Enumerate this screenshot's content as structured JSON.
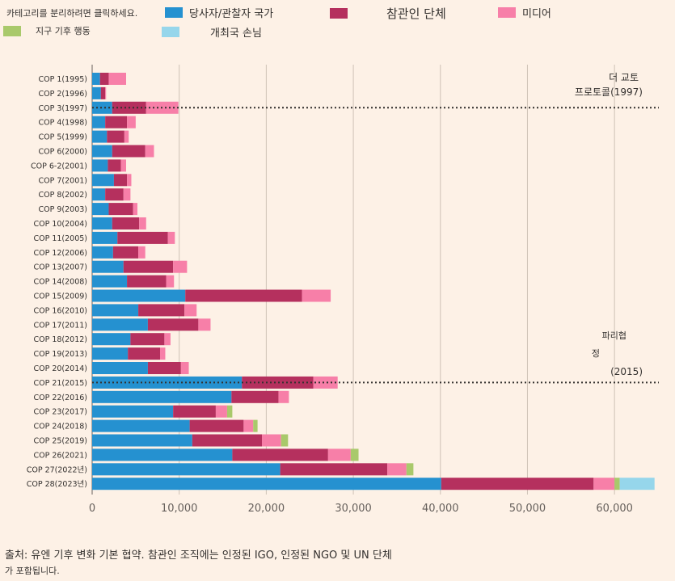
{
  "legend": {
    "hint": "카테고리를 분리하려면 클릭하세요.",
    "items": [
      {
        "key": "party",
        "label": "당사자/관찰자 국가",
        "color": "#2591d0"
      },
      {
        "key": "ngo",
        "label": "참관인 단체",
        "color": "#b5305e"
      },
      {
        "key": "media",
        "label": "미디어",
        "color": "#f77fa8"
      },
      {
        "key": "climate",
        "label": "지구 기후 행동",
        "color": "#a9c96b"
      },
      {
        "key": "host",
        "label": "개최국 손님",
        "color": "#96d6eb"
      }
    ]
  },
  "annotations": {
    "kyoto_line1": "더 교토",
    "kyoto_line2": "프로토콜(1997)",
    "paris_line1": "파리협",
    "paris_line2": "정",
    "paris_line3": "(2015)"
  },
  "source": {
    "text": "출처: 유엔 기후 변화 기본 협약. 참관인 조직에는 인정된 IGO, 인정된 NGO 및 UN 단체",
    "text2": "가 포함됩니다."
  },
  "chart_data": {
    "type": "bar",
    "orientation": "horizontal",
    "stacked": true,
    "xlim": [
      0,
      65000
    ],
    "xticks": [
      "0",
      "10,000",
      "20,000",
      "30,000",
      "40,000",
      "50,000",
      "60,000"
    ],
    "categories": [
      "COP 1(1995)",
      "COP 2(1996)",
      "COP 3(1997)",
      "COP 4(1998)",
      "COP 5(1999)",
      "COP 6(2000)",
      "COP 6-2(2001)",
      "COP 7(2001)",
      "COP 8(2002)",
      "COP 9(2003)",
      "COP 10(2004)",
      "COP 11(2005)",
      "COP 12(2006)",
      "COP 13(2007)",
      "COP 14(2008)",
      "COP 15(2009)",
      "COP 16(2010)",
      "COP 17(2011)",
      "COP 18(2012)",
      "COP 19(2013)",
      "COP 20(2014)",
      "COP 21(2015)",
      "COP 22(2016)",
      "COP 23(2017)",
      "COP 24(2018)",
      "COP 25(2019)",
      "COP 26(2021)",
      "COP 27(2022년)",
      "COP 28(2023년)"
    ],
    "series": [
      {
        "name": "당사자/관찰자 국가",
        "values": [
          900,
          1000,
          2300,
          1500,
          1700,
          2300,
          1800,
          2500,
          1500,
          1900,
          2300,
          2900,
          2400,
          3600,
          4000,
          10700,
          5300,
          6400,
          4400,
          4100,
          6400,
          17200,
          16000,
          9300,
          11200,
          11500,
          16100,
          21600,
          40100
        ]
      },
      {
        "name": "참관인 단체",
        "values": [
          1000,
          500,
          3900,
          2500,
          2000,
          3800,
          1500,
          1500,
          2100,
          2800,
          3100,
          5800,
          2900,
          5700,
          4500,
          13400,
          5300,
          5800,
          3900,
          3700,
          3800,
          8200,
          5400,
          4900,
          6200,
          8000,
          11000,
          12300,
          17500
        ]
      },
      {
        "name": "미디어",
        "values": [
          2000,
          100,
          3700,
          1000,
          500,
          1000,
          600,
          500,
          800,
          500,
          800,
          800,
          800,
          1600,
          900,
          3300,
          1400,
          1400,
          700,
          600,
          900,
          2800,
          1200,
          1300,
          1100,
          2200,
          2600,
          2200,
          2400
        ]
      },
      {
        "name": "지구 기후 행동",
        "values": [
          0,
          0,
          0,
          0,
          0,
          0,
          0,
          0,
          0,
          0,
          0,
          0,
          0,
          0,
          0,
          0,
          0,
          0,
          0,
          0,
          0,
          0,
          0,
          600,
          500,
          800,
          900,
          800,
          600
        ]
      },
      {
        "name": "개최국 손님",
        "values": [
          0,
          0,
          0,
          0,
          0,
          0,
          0,
          0,
          0,
          0,
          0,
          0,
          0,
          0,
          0,
          0,
          0,
          0,
          0,
          0,
          0,
          0,
          0,
          0,
          0,
          0,
          0,
          0,
          4000
        ]
      }
    ],
    "reference_lines": [
      "COP 3(1997)",
      "COP 21(2015)"
    ],
    "grid": true
  }
}
